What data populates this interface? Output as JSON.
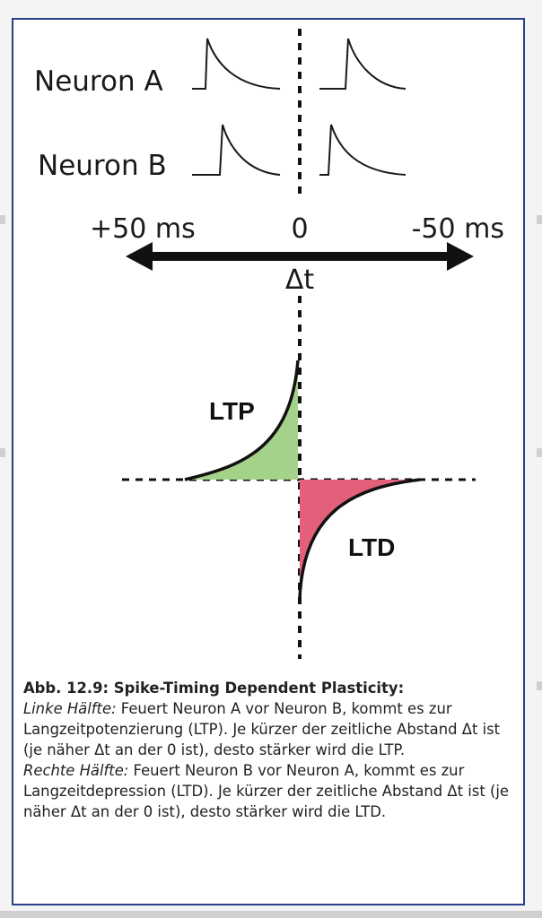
{
  "diagram": {
    "neuron_a_label": "Neuron A",
    "neuron_b_label": "Neuron B",
    "axis_left_label": "+50 ms",
    "axis_center_label": "0",
    "axis_right_label": "-50 ms",
    "axis_symbol": "Δt",
    "ltp_label": "LTP",
    "ltd_label": "LTD",
    "ltp_color": "#a5d28b",
    "ltd_color": "#e4607a"
  },
  "caption": {
    "title": "Abb. 12.9: Spike-Timing Dependent Plasticity:",
    "left_heading": "Linke Hälfte:",
    "left_text": " Feuert Neuron A vor Neuron B, kommt es zur Langzeitpotenzierung (LTP). Je  kürzer der zeitliche Abstand Δt ist (je näher Δt an der 0 ist), desto stärker wird die LTP.",
    "right_heading": "Rechte Hälfte:",
    "right_text": " Feuert Neuron B vor Neuron A, kommt es zur Langzeitdepression (LTD). Je  kürzer der zeitliche Abstand Δt ist (je näher Δt an der 0 ist), desto stärker wird die LTD."
  }
}
